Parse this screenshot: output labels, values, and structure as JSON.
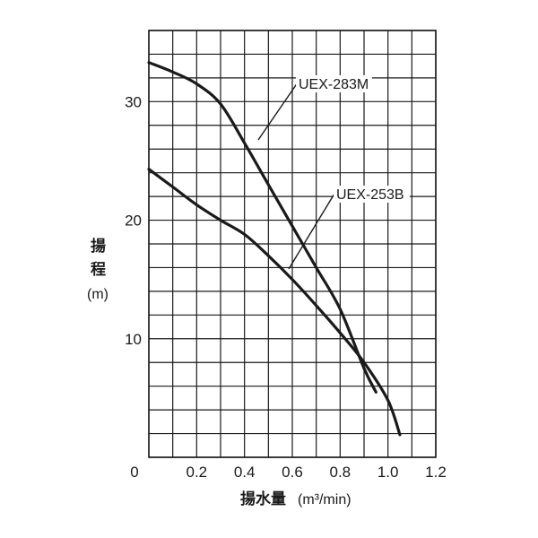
{
  "chart_data": {
    "type": "line",
    "xlabel": "揚水量",
    "xunit": "(m³/min)",
    "ylabel_line1": "揚",
    "ylabel_line2": "程",
    "ylabel_unit": "(m)",
    "xlim": [
      0,
      1.2
    ],
    "ylim": [
      0,
      36
    ],
    "grid": true,
    "x_ticks": [
      "0",
      "0.2",
      "0.4",
      "0.6",
      "0.8",
      "1.0",
      "1.2"
    ],
    "x_tick_values": [
      0,
      0.2,
      0.4,
      0.6,
      0.8,
      1.0,
      1.2
    ],
    "y_ticks": [
      "10",
      "20",
      "30"
    ],
    "y_tick_values": [
      10,
      20,
      30
    ],
    "series": [
      {
        "name": "UEX-283M",
        "color": "#1a1a1a",
        "x": [
          0,
          0.1,
          0.2,
          0.3,
          0.4,
          0.5,
          0.6,
          0.7,
          0.8,
          0.9,
          0.95
        ],
        "y": [
          33.3,
          32.5,
          31.5,
          29.8,
          26.5,
          23.0,
          19.5,
          16.0,
          12.5,
          7.5,
          5.5
        ]
      },
      {
        "name": "UEX-253B",
        "color": "#1a1a1a",
        "x": [
          0,
          0.1,
          0.2,
          0.3,
          0.4,
          0.5,
          0.6,
          0.7,
          0.8,
          0.9,
          1.0,
          1.05
        ],
        "y": [
          24.3,
          22.8,
          21.3,
          20.0,
          18.8,
          17.0,
          15.0,
          12.8,
          10.5,
          8.0,
          4.8,
          1.9
        ]
      }
    ]
  }
}
